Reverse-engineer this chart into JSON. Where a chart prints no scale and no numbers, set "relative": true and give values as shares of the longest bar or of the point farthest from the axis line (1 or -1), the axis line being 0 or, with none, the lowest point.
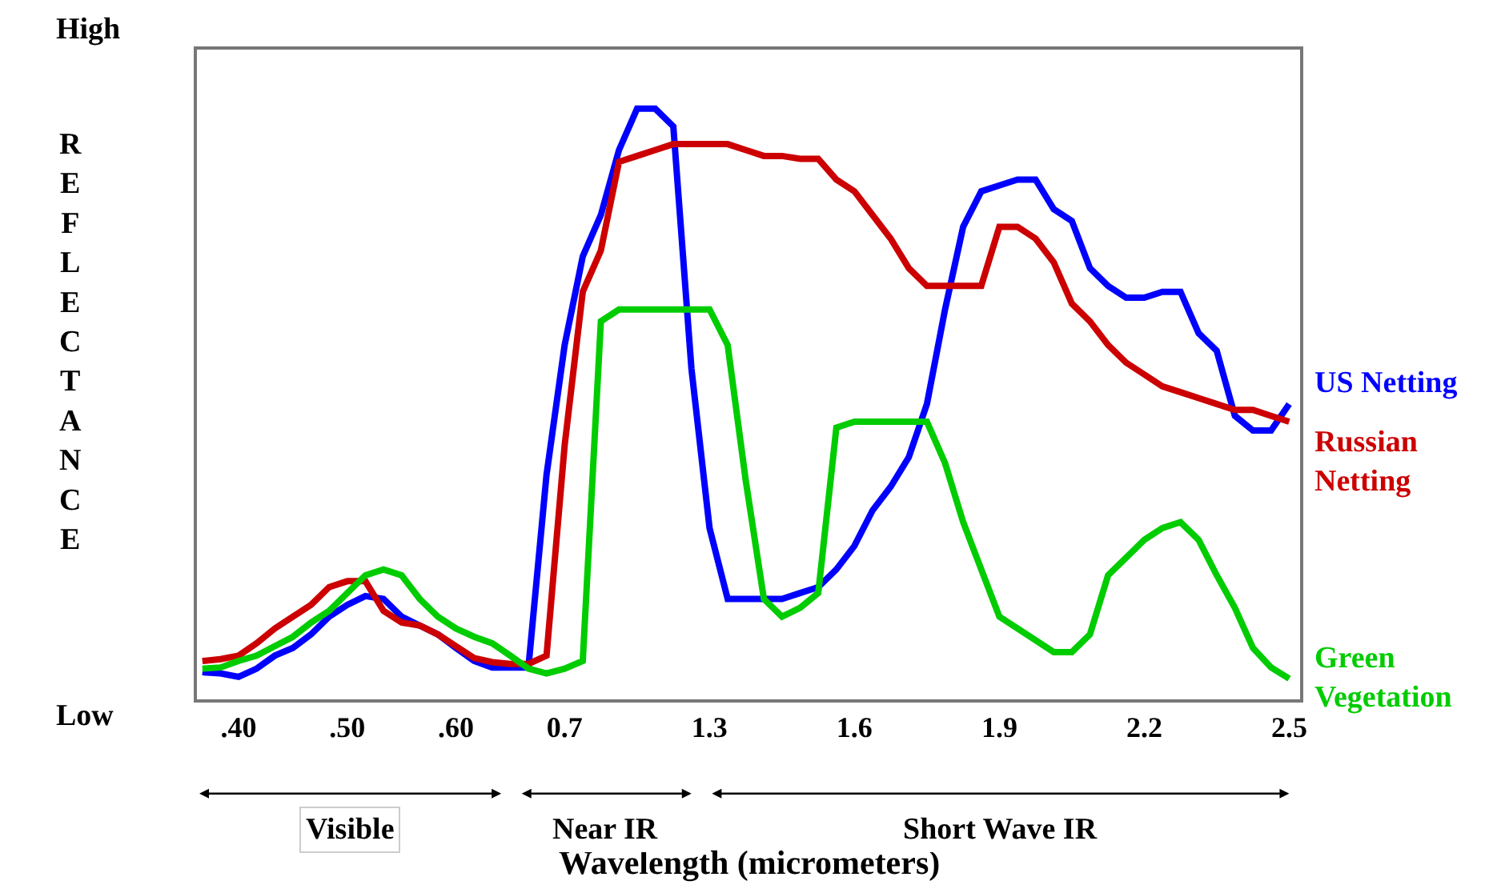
{
  "chart_data": {
    "type": "line",
    "relative": true,
    "xlabel": "Wavelength (micrometers)",
    "ylabel": "REFLECTANCE",
    "categories": [
      null,
      null,
      ".40",
      null,
      null,
      null,
      null,
      null,
      ".50",
      null,
      null,
      null,
      null,
      null,
      ".60",
      null,
      null,
      null,
      null,
      null,
      "0.7",
      null,
      null,
      null,
      null,
      null,
      null,
      null,
      "1.3",
      null,
      null,
      null,
      null,
      null,
      null,
      null,
      "1.6",
      null,
      null,
      null,
      null,
      null,
      null,
      null,
      "1.9",
      null,
      null,
      null,
      null,
      null,
      null,
      null,
      "2.2",
      null,
      null,
      null,
      null,
      null,
      null,
      null,
      "2.5"
    ],
    "series": [
      {
        "name": "US Netting",
        "color": "#0000ff",
        "values": [
          0.046,
          0.044,
          0.038,
          0.052,
          0.074,
          0.087,
          0.11,
          0.14,
          0.16,
          0.175,
          0.17,
          0.14,
          0.125,
          0.11,
          0.087,
          0.065,
          0.054,
          0.054,
          0.054,
          0.38,
          0.6,
          0.75,
          0.82,
          0.93,
          1,
          1,
          0.97,
          0.56,
          0.29,
          0.17,
          0.17,
          0.17,
          0.17,
          0.18,
          0.19,
          0.22,
          0.26,
          0.32,
          0.36,
          0.41,
          0.5,
          0.66,
          0.8,
          0.86,
          0.87,
          0.88,
          0.88,
          0.83,
          0.81,
          0.73,
          0.7,
          0.68,
          0.68,
          0.69,
          0.69,
          0.62,
          0.59,
          0.48,
          0.455,
          0.455,
          0.5
        ]
      },
      {
        "name": "Russian Netting",
        "color": "#cc0000",
        "values": [
          0.065,
          0.068,
          0.074,
          0.095,
          0.12,
          0.14,
          0.16,
          0.19,
          0.2,
          0.2,
          0.15,
          0.13,
          0.125,
          0.11,
          0.09,
          0.07,
          0.063,
          0.06,
          0.06,
          0.074,
          0.43,
          0.69,
          0.76,
          0.91,
          0.92,
          0.93,
          0.94,
          0.94,
          0.94,
          0.94,
          0.93,
          0.92,
          0.92,
          0.915,
          0.915,
          0.88,
          0.86,
          0.82,
          0.78,
          0.73,
          0.7,
          0.7,
          0.7,
          0.7,
          0.8,
          0.8,
          0.78,
          0.74,
          0.67,
          0.64,
          0.6,
          0.57,
          0.55,
          0.53,
          0.52,
          0.51,
          0.5,
          0.49,
          0.49,
          0.48,
          0.47
        ]
      },
      {
        "name": "Green Vegetation",
        "color": "#00cc00",
        "values": [
          0.052,
          0.054,
          0.065,
          0.074,
          0.09,
          0.106,
          0.13,
          0.15,
          0.18,
          0.21,
          0.22,
          0.21,
          0.17,
          0.14,
          0.12,
          0.106,
          0.095,
          0.074,
          0.052,
          0.044,
          0.052,
          0.065,
          0.64,
          0.66,
          0.66,
          0.66,
          0.66,
          0.66,
          0.66,
          0.6,
          0.37,
          0.17,
          0.14,
          0.155,
          0.18,
          0.46,
          0.47,
          0.47,
          0.47,
          0.47,
          0.47,
          0.4,
          0.3,
          0.22,
          0.14,
          0.12,
          0.1,
          0.08,
          0.08,
          0.11,
          0.21,
          0.24,
          0.27,
          0.29,
          0.3,
          0.27,
          0.21,
          0.155,
          0.087,
          0.054,
          0.035
        ]
      }
    ],
    "annotations": [
      "High",
      "Low",
      "Visible",
      "Near IR",
      "Short Wave IR"
    ],
    "legend": false,
    "marker": "none",
    "line_style": "solid"
  }
}
